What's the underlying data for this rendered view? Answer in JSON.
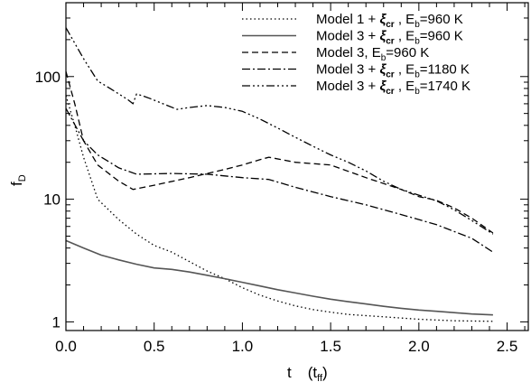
{
  "chart_data": {
    "type": "line",
    "xlabel": {
      "main": "t",
      "unit": "t",
      "unit_sub": "ff"
    },
    "ylabel": {
      "main": "f",
      "sub": "D"
    },
    "xlim": [
      0,
      2.62
    ],
    "ylim": [
      0.85,
      400
    ],
    "yscale": "log",
    "grid": false,
    "legend_position": "top-right",
    "x_ticks": [
      {
        "value": 0.0,
        "label": "0.0"
      },
      {
        "value": 0.5,
        "label": "0.5"
      },
      {
        "value": 1.0,
        "label": "1.0"
      },
      {
        "value": 1.5,
        "label": "1.5"
      },
      {
        "value": 2.0,
        "label": "2.0"
      },
      {
        "value": 2.5,
        "label": "2.5"
      }
    ],
    "x_minor_ticks": [
      0.1,
      0.2,
      0.3,
      0.4,
      0.6,
      0.7,
      0.8,
      0.9,
      1.1,
      1.2,
      1.3,
      1.4,
      1.6,
      1.7,
      1.8,
      1.9,
      2.1,
      2.2,
      2.3,
      2.4,
      2.6
    ],
    "y_ticks": [
      {
        "value": 1,
        "label": "1"
      },
      {
        "value": 10,
        "label": "10"
      },
      {
        "value": 100,
        "label": "100"
      }
    ],
    "y_minor_ticks": [
      2,
      3,
      4,
      5,
      6,
      7,
      8,
      9,
      20,
      30,
      40,
      50,
      60,
      70,
      80,
      90,
      200,
      300
    ],
    "series": [
      {
        "legend": {
          "pre": "Model 1 + ",
          "xi": "ξ",
          "xi_sub": "cr",
          "mid": " , E",
          "e_sub": "b",
          "post": "=960 K"
        },
        "dash": "1.5,3",
        "color": "#000000",
        "width": 1.3,
        "points": [
          [
            0,
            70
          ],
          [
            0.05,
            40
          ],
          [
            0.1,
            22
          ],
          [
            0.18,
            10
          ],
          [
            0.3,
            6.8
          ],
          [
            0.4,
            5.2
          ],
          [
            0.5,
            4.2
          ],
          [
            0.6,
            3.7
          ],
          [
            0.7,
            3.1
          ],
          [
            0.8,
            2.6
          ],
          [
            0.9,
            2.25
          ],
          [
            1.0,
            1.9
          ],
          [
            1.1,
            1.65
          ],
          [
            1.2,
            1.48
          ],
          [
            1.3,
            1.35
          ],
          [
            1.4,
            1.26
          ],
          [
            1.5,
            1.2
          ],
          [
            1.6,
            1.15
          ],
          [
            1.8,
            1.1
          ],
          [
            2.0,
            1.05
          ],
          [
            2.2,
            1.02
          ],
          [
            2.42,
            1.01
          ]
        ]
      },
      {
        "legend": {
          "pre": "Model 3 + ",
          "xi": "ξ",
          "xi_sub": "cr",
          "mid": " , E",
          "e_sub": "b",
          "post": "=960 K"
        },
        "dash": "",
        "color": "#555555",
        "width": 1.6,
        "points": [
          [
            0,
            4.6
          ],
          [
            0.1,
            4.0
          ],
          [
            0.2,
            3.5
          ],
          [
            0.3,
            3.2
          ],
          [
            0.4,
            2.95
          ],
          [
            0.5,
            2.75
          ],
          [
            0.6,
            2.68
          ],
          [
            0.7,
            2.55
          ],
          [
            0.8,
            2.4
          ],
          [
            0.9,
            2.25
          ],
          [
            1.0,
            2.1
          ],
          [
            1.1,
            1.96
          ],
          [
            1.2,
            1.83
          ],
          [
            1.3,
            1.72
          ],
          [
            1.4,
            1.62
          ],
          [
            1.5,
            1.53
          ],
          [
            1.6,
            1.46
          ],
          [
            1.7,
            1.4
          ],
          [
            1.8,
            1.34
          ],
          [
            1.9,
            1.29
          ],
          [
            2.0,
            1.25
          ],
          [
            2.1,
            1.22
          ],
          [
            2.2,
            1.19
          ],
          [
            2.3,
            1.16
          ],
          [
            2.42,
            1.14
          ]
        ]
      },
      {
        "legend": {
          "pre": "Model 3, E",
          "e_sub": "b",
          "post": "=960 K"
        },
        "dash": "7,4",
        "color": "#000000",
        "width": 1.3,
        "points": [
          [
            0,
            110
          ],
          [
            0.05,
            60
          ],
          [
            0.1,
            30
          ],
          [
            0.18,
            19
          ],
          [
            0.3,
            14
          ],
          [
            0.38,
            12
          ],
          [
            0.5,
            13
          ],
          [
            0.7,
            15
          ],
          [
            0.9,
            17.5
          ],
          [
            1.0,
            19
          ],
          [
            1.1,
            21
          ],
          [
            1.15,
            22
          ],
          [
            1.3,
            20
          ],
          [
            1.5,
            19
          ],
          [
            1.7,
            15
          ],
          [
            1.9,
            12
          ],
          [
            2.0,
            10.5
          ],
          [
            2.1,
            9.8
          ],
          [
            2.2,
            8.5
          ],
          [
            2.3,
            7
          ],
          [
            2.42,
            5.3
          ]
        ]
      },
      {
        "legend": {
          "pre": "Model 3 + ",
          "xi": "ξ",
          "xi_sub": "cr",
          "mid": " , E",
          "e_sub": "b",
          "post": "=1180 K"
        },
        "dash": "9,3,2,3",
        "color": "#000000",
        "width": 1.3,
        "points": [
          [
            0,
            55
          ],
          [
            0.1,
            30
          ],
          [
            0.18,
            23
          ],
          [
            0.3,
            18
          ],
          [
            0.4,
            16
          ],
          [
            0.6,
            16.2
          ],
          [
            0.8,
            16
          ],
          [
            1.0,
            15
          ],
          [
            1.15,
            14.5
          ],
          [
            1.3,
            12.5
          ],
          [
            1.5,
            10.5
          ],
          [
            1.7,
            9
          ],
          [
            1.9,
            7.5
          ],
          [
            2.1,
            6.2
          ],
          [
            2.3,
            4.8
          ],
          [
            2.42,
            3.7
          ]
        ]
      },
      {
        "legend": {
          "pre": "Model 3 + ",
          "xi": "ξ",
          "xi_sub": "cr",
          "mid": " , E",
          "e_sub": "b",
          "post": "=1740 K"
        },
        "dash": "9,3,2,3,2,3,2,3",
        "color": "#000000",
        "width": 1.3,
        "points": [
          [
            0,
            250
          ],
          [
            0.1,
            140
          ],
          [
            0.18,
            92
          ],
          [
            0.25,
            80
          ],
          [
            0.3,
            72
          ],
          [
            0.35,
            65
          ],
          [
            0.38,
            60
          ],
          [
            0.4,
            72
          ],
          [
            0.43,
            70
          ],
          [
            0.48,
            66
          ],
          [
            0.55,
            60
          ],
          [
            0.63,
            54
          ],
          [
            0.7,
            56
          ],
          [
            0.8,
            58
          ],
          [
            0.9,
            56
          ],
          [
            1.0,
            52
          ],
          [
            1.1,
            45
          ],
          [
            1.2,
            38
          ],
          [
            1.3,
            32
          ],
          [
            1.4,
            27
          ],
          [
            1.5,
            23
          ],
          [
            1.6,
            20
          ],
          [
            1.7,
            17
          ],
          [
            1.8,
            14
          ],
          [
            1.9,
            12
          ],
          [
            2.0,
            10.8
          ],
          [
            2.1,
            9.7
          ],
          [
            2.2,
            8.2
          ],
          [
            2.3,
            6.7
          ],
          [
            2.42,
            5.2
          ]
        ]
      }
    ]
  }
}
